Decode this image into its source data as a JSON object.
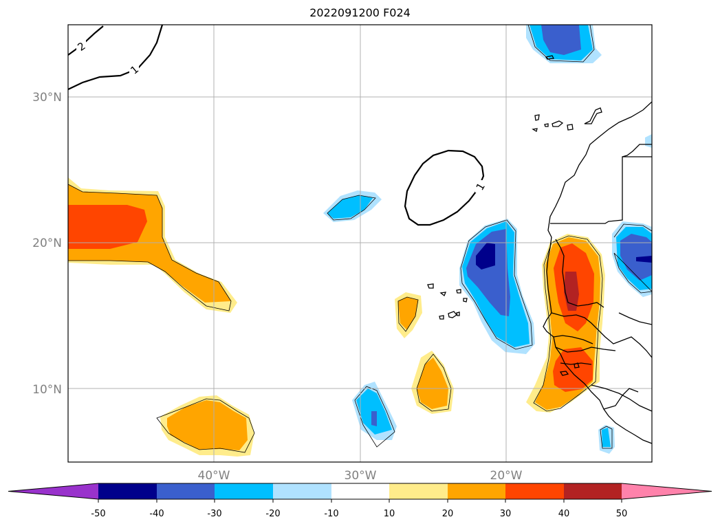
{
  "title": "2022091200 F024",
  "axes": {
    "lat_labels": [
      "30°N",
      "20°N",
      "10°N"
    ],
    "lon_labels": [
      "40°W",
      "30°W",
      "20°W"
    ]
  },
  "contour_labels": [
    "2",
    "1",
    "1"
  ],
  "colorbar": {
    "ticks": [
      "-50",
      "-40",
      "-30",
      "-20",
      "-10",
      "10",
      "20",
      "30",
      "40",
      "50"
    ],
    "colors": [
      "#9932cc",
      "#00008b",
      "#3a5fcd",
      "#00bfff",
      "#b0e2ff",
      "#ffffff",
      "#ffec8b",
      "#ffa500",
      "#ff4500",
      "#b22222",
      "#ff82ab"
    ]
  }
}
